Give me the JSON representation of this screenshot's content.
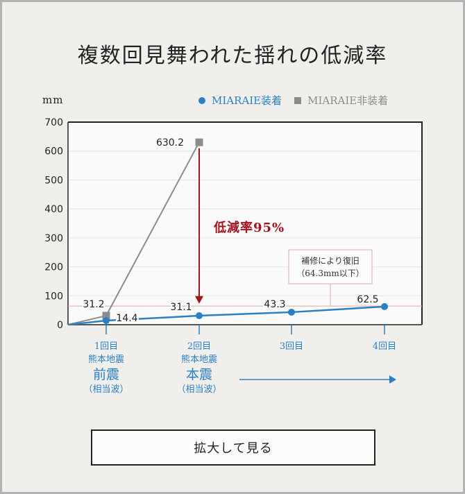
{
  "title": "複数回見舞われた揺れの低減率",
  "unit_label": "mm",
  "legend": [
    {
      "label": "MIARAIE装着",
      "marker": "circle",
      "color": "#2a7fc6"
    },
    {
      "label": "MIARAIE非装着",
      "marker": "square",
      "color": "#8c8c8c"
    }
  ],
  "x_categories": [
    {
      "line1": "1回目",
      "line2": "熊本地震",
      "line3": "前震",
      "line4": "（相当波）"
    },
    {
      "line1": "2回目",
      "line2": "熊本地震",
      "line3": "本震",
      "line4": "（相当波）"
    },
    {
      "line1": "3回目",
      "line2": "",
      "line3": "",
      "line4": ""
    },
    {
      "line1": "4回目",
      "line2": "",
      "line3": "",
      "line4": ""
    }
  ],
  "reduction_label": "低減率95%",
  "annotation": {
    "line1": "補修により復旧",
    "line2": "（64.3mm以下）"
  },
  "button_label": "拡大して見る",
  "colors": {
    "with": "#2a7fc6",
    "without": "#8c8c8c",
    "reduction": "#a3141c",
    "threshold": "#e3a6a8",
    "background": "#f0efec"
  },
  "chart_data": {
    "type": "line",
    "title": "複数回見舞われた揺れの低減率",
    "xlabel": "",
    "ylabel": "mm",
    "categories": [
      "0",
      "1回目 熊本地震 前震（相当波）",
      "2回目 熊本地震 本震（相当波）",
      "3回目",
      "4回目"
    ],
    "series": [
      {
        "name": "MIARAIE装着",
        "values": [
          0,
          14.4,
          31.1,
          43.3,
          62.5
        ]
      },
      {
        "name": "MIARAIE非装着",
        "values": [
          0,
          31.2,
          630.2,
          null,
          null
        ]
      }
    ],
    "y_ticks": [
      0,
      100,
      200,
      300,
      400,
      500,
      600,
      700
    ],
    "ylim": [
      0,
      700
    ],
    "grid": true,
    "legend_position": "top-right",
    "annotations": [
      {
        "text": "低減率95%",
        "type": "arrow",
        "from": 630.2,
        "to": 31.1,
        "category": "2回目"
      },
      {
        "text": "補修により復旧（64.3mm以下）",
        "type": "threshold-line",
        "value": 64.3
      }
    ],
    "data_labels": {
      "MIARAIE装着": [
        "14.4",
        "31.1",
        "43.3",
        "62.5"
      ],
      "MIARAIE非装着": [
        "31.2",
        "630.2"
      ]
    }
  }
}
